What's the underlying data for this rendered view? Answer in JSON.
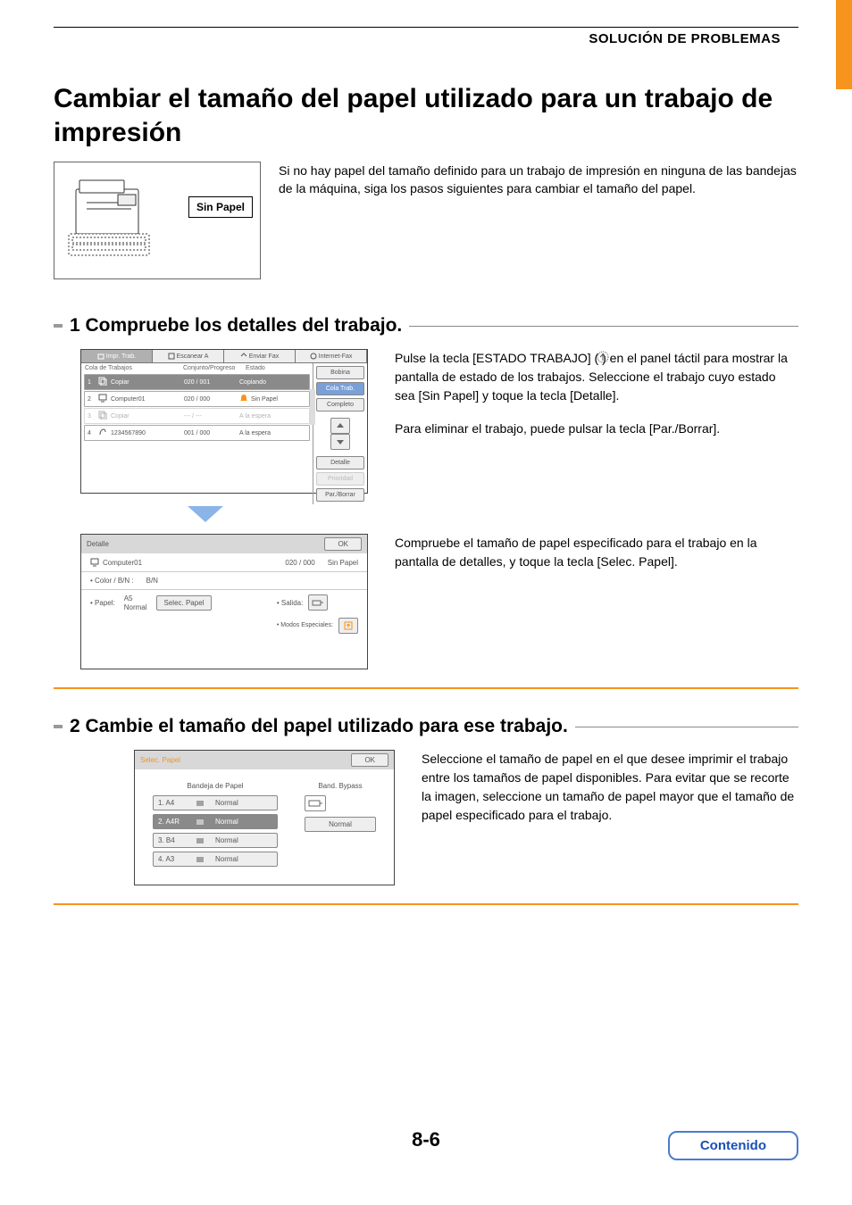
{
  "colors": {
    "accent_orange": "#f7941d",
    "link_blue": "#1a4fb5",
    "link_border": "#4a7bd0",
    "panel_border": "#444444",
    "dark_row": "#8a8a8a",
    "side_highlight": "#7aa0d8"
  },
  "header": {
    "section": "SOLUCIÓN DE PROBLEMAS"
  },
  "title": "Cambiar el tamaño del papel utilizado para un trabajo de impresión",
  "intro": {
    "badge": "Sin Papel",
    "text": "Si no hay papel del tamaño definido para un trabajo de impresión en ninguna de las bandejas de la máquina, siga los pasos siguientes para cambiar el tamaño del papel."
  },
  "step1": {
    "heading": "1 Compruebe los detalles del trabajo.",
    "para1": "Pulse la tecla [ESTADO TRABAJO] (      ) en el panel táctil para mostrar la pantalla de estado de los trabajos. Seleccione el trabajo cuyo estado sea [Sin Papel] y toque la tecla [Detalle].",
    "para2": "Para eliminar el trabajo, puede pulsar la tecla [Par./Borrar].",
    "para3": "Compruebe el tamaño de papel especificado para el trabajo en la pantalla de detalles, y toque la tecla [Selec. Papel].",
    "panel1": {
      "tabs": [
        "Impr. Trab.",
        "Escanear A",
        "Enviar Fax",
        "Internet-Fax"
      ],
      "columns": [
        "Cola de Trabajos",
        "Conjunto/Progreso",
        "Estado"
      ],
      "rows": [
        {
          "n": "1",
          "name": "Copiar",
          "prog": "020 / 001",
          "status": "Copiando",
          "dark": true,
          "icon": "copy"
        },
        {
          "n": "2",
          "name": "Computer01",
          "prog": "020 / 000",
          "status": "Sin Papel",
          "dark": false,
          "icon": "pc",
          "alert": true
        },
        {
          "n": "3",
          "name": "Copiar",
          "prog": "--- / ---",
          "status": "A la espera",
          "dark": false,
          "icon": "copy",
          "dim": true
        },
        {
          "n": "4",
          "name": "1234567890",
          "prog": "001 / 000",
          "status": "A la espera",
          "dark": false,
          "icon": "fax"
        }
      ],
      "side": {
        "top1": "Bobina",
        "top2": "Cola Trab.",
        "top3": "Completo",
        "detail": "Detalle",
        "priority": "Prioridad",
        "stop": "Par./Borrar"
      }
    },
    "panel2": {
      "title": "Detalle",
      "ok": "OK",
      "job": "Computer01",
      "prog": "020 / 000",
      "status": "Sin Papel",
      "color_label": "Color / B/N :",
      "color_val": "B/N",
      "paper_label": "Papel:",
      "paper_val1": "A5",
      "paper_val2": "Normal",
      "select_btn": "Selec. Papel",
      "output_label": "Salida:",
      "modes_label": "Modos Especiales:"
    }
  },
  "step2": {
    "heading": "2 Cambie el tamaño del papel utilizado para ese trabajo.",
    "para": "Seleccione el tamaño de papel en el que desee imprimir el trabajo entre los tamaños de papel disponibles. Para evitar que se recorte la imagen, seleccione un tamaño de papel mayor que el tamaño de papel especificado para el trabajo.",
    "panel": {
      "title": "Selec. Papel",
      "ok": "OK",
      "col1_label": "Bandeja de Papel",
      "col2_label": "Band. Bypass",
      "trays": [
        {
          "id": "1.",
          "size": "A4",
          "type": "Normal",
          "sel": false
        },
        {
          "id": "2.",
          "size": "A4R",
          "type": "Normal",
          "sel": true
        },
        {
          "id": "3.",
          "size": "B4",
          "type": "Normal",
          "sel": false
        },
        {
          "id": "4.",
          "size": "A3",
          "type": "Normal",
          "sel": false
        }
      ],
      "bypass_type": "Normal"
    }
  },
  "page_number": "8-6",
  "contents_link": "Contenido"
}
